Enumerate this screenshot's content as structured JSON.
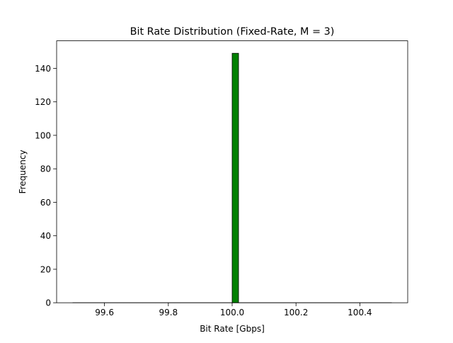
{
  "chart_data": {
    "type": "bar",
    "title": "Bit Rate Distribution (Fixed-Rate, M = 3)",
    "xlabel": "Bit Rate [Gbps]",
    "ylabel": "Frequency",
    "xlim": [
      99.45,
      100.55
    ],
    "ylim": [
      0,
      156.45
    ],
    "x_ticks": [
      99.6,
      99.8,
      100.0,
      100.2,
      100.4
    ],
    "x_tick_labels": [
      "99.6",
      "99.8",
      "100.0",
      "100.2",
      "100.4"
    ],
    "y_ticks": [
      0,
      20,
      40,
      60,
      80,
      100,
      120,
      140
    ],
    "y_tick_labels": [
      "0",
      "20",
      "40",
      "60",
      "80",
      "100",
      "120",
      "140"
    ],
    "bin_range": [
      99.5,
      100.5
    ],
    "bin_width": 0.02,
    "bins": [
      {
        "x0": 99.98,
        "x1": 100.0,
        "count": 0
      },
      {
        "x0": 100.0,
        "x1": 100.02,
        "count": 149
      }
    ],
    "bar_color": "#008000",
    "edge_color": "#000000",
    "grid": false,
    "legend": "none"
  }
}
